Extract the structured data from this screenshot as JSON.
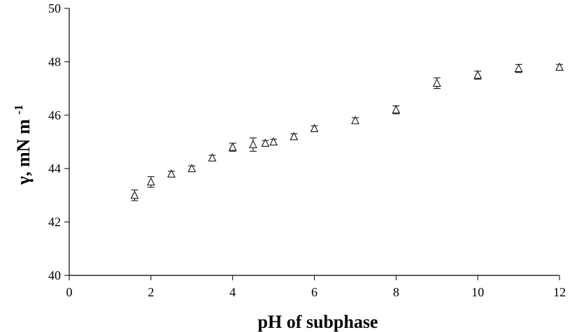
{
  "chart_data": {
    "type": "scatter",
    "xlabel": "pH of subphase",
    "ylabel": "γ, mN m",
    "ylabel_superscript": "-1",
    "xlim": [
      0,
      12
    ],
    "ylim": [
      40,
      50
    ],
    "xticks": [
      "0",
      "2",
      "4",
      "6",
      "8",
      "10",
      "12"
    ],
    "yticks": [
      "40",
      "42",
      "44",
      "46",
      "48",
      "50"
    ],
    "grid": false,
    "marker": "open-triangle",
    "series": [
      {
        "points": [
          {
            "x": 1.6,
            "y": 43.0,
            "err": 0.2
          },
          {
            "x": 2.0,
            "y": 43.5,
            "err": 0.2
          },
          {
            "x": 2.5,
            "y": 43.8,
            "err": 0.1
          },
          {
            "x": 3.0,
            "y": 44.0,
            "err": 0.1
          },
          {
            "x": 3.5,
            "y": 44.4,
            "err": 0.1
          },
          {
            "x": 4.0,
            "y": 44.8,
            "err": 0.15
          },
          {
            "x": 4.5,
            "y": 44.9,
            "err": 0.25
          },
          {
            "x": 4.8,
            "y": 44.95,
            "err": 0.1
          },
          {
            "x": 5.0,
            "y": 45.0,
            "err": 0.1
          },
          {
            "x": 5.5,
            "y": 45.2,
            "err": 0.1
          },
          {
            "x": 6.0,
            "y": 45.5,
            "err": 0.1
          },
          {
            "x": 7.0,
            "y": 45.8,
            "err": 0.1
          },
          {
            "x": 8.0,
            "y": 46.2,
            "err": 0.15
          },
          {
            "x": 9.0,
            "y": 47.2,
            "err": 0.2
          },
          {
            "x": 10.0,
            "y": 47.5,
            "err": 0.15
          },
          {
            "x": 11.0,
            "y": 47.75,
            "err": 0.15
          },
          {
            "x": 12.0,
            "y": 47.8,
            "err": 0.1
          }
        ]
      }
    ]
  }
}
